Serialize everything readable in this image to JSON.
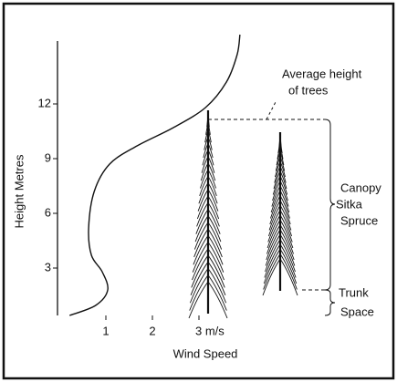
{
  "chart_data": {
    "type": "line",
    "y_label": "Height Metres",
    "x_label": "Wind Speed",
    "x": [
      0.22,
      0.78,
      1.04,
      0.92,
      0.69,
      0.63,
      0.75,
      1.08,
      1.67,
      2.45,
      3.14,
      3.59,
      3.82,
      3.88
    ],
    "values": [
      0.4,
      0.95,
      1.8,
      2.8,
      3.7,
      5.2,
      7.2,
      8.7,
      9.7,
      10.7,
      11.8,
      13.2,
      14.7,
      15.8
    ],
    "color": "#111111",
    "xlim": [
      0,
      5.5
    ],
    "xticks": [
      1,
      2,
      {
        "value": 3,
        "label": "3 m/s"
      }
    ],
    "ylim": [
      0.4,
      15.8
    ],
    "yticks": [
      3,
      6,
      9,
      12
    ],
    "annotations": [
      "Average height",
      "of trees",
      "Canopy",
      "Sitka",
      "Spruce",
      "Trunk",
      "Space"
    ]
  }
}
